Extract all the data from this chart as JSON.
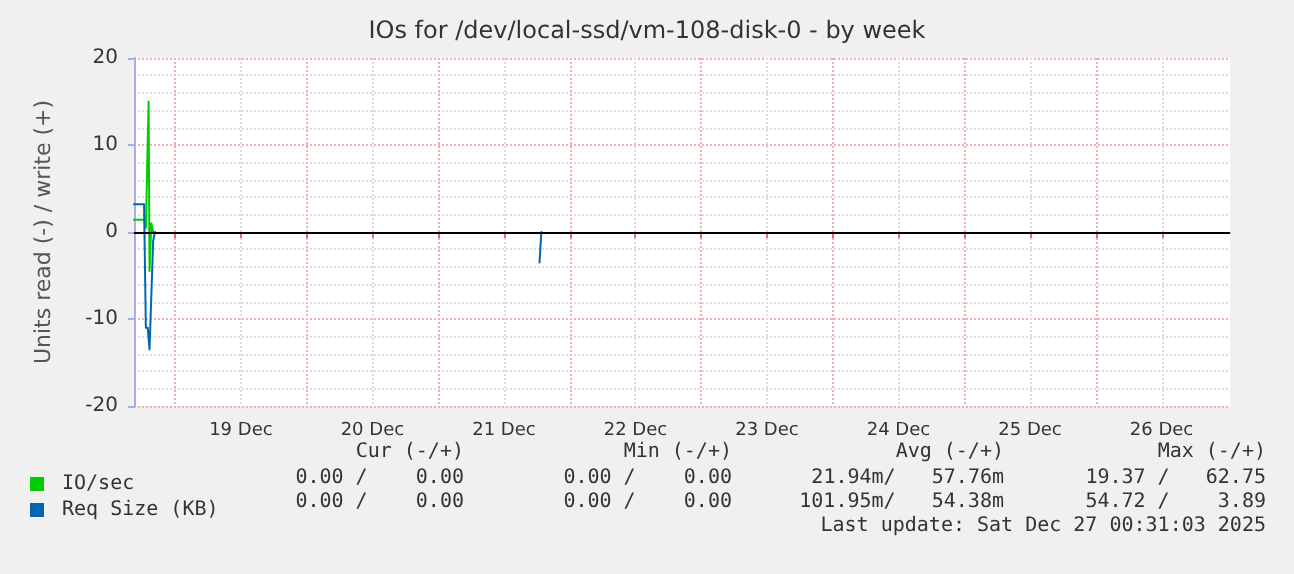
{
  "chart_data": {
    "type": "line",
    "title": "IOs for /dev/local-ssd/vm-108-disk-0 - by week",
    "ylabel": "Units read (-) / write (+)",
    "xlim": [
      "2025-12-18T16:30",
      "2025-12-27T00:30"
    ],
    "xticks": [
      {
        "value": "2025-12-19T00:00",
        "label": null
      },
      {
        "value": "2025-12-19T12:00",
        "label": "19 Dec"
      },
      {
        "value": "2025-12-20T00:00",
        "label": null
      },
      {
        "value": "2025-12-20T12:00",
        "label": "20 Dec"
      },
      {
        "value": "2025-12-21T00:00",
        "label": null
      },
      {
        "value": "2025-12-21T12:00",
        "label": "21 Dec"
      },
      {
        "value": "2025-12-22T00:00",
        "label": null
      },
      {
        "value": "2025-12-22T12:00",
        "label": "22 Dec"
      },
      {
        "value": "2025-12-23T00:00",
        "label": null
      },
      {
        "value": "2025-12-23T12:00",
        "label": "23 Dec"
      },
      {
        "value": "2025-12-24T00:00",
        "label": null
      },
      {
        "value": "2025-12-24T12:00",
        "label": "24 Dec"
      },
      {
        "value": "2025-12-25T00:00",
        "label": null
      },
      {
        "value": "2025-12-25T12:00",
        "label": "25 Dec"
      },
      {
        "value": "2025-12-26T00:00",
        "label": null
      },
      {
        "value": "2025-12-26T12:00",
        "label": "26 Dec"
      }
    ],
    "ylim": [
      -20,
      20
    ],
    "yticks": [
      -20,
      -10,
      0,
      10,
      20
    ],
    "grid": true,
    "legend": "bottom left",
    "marker": "none",
    "ref_lines": [
      {
        "axis": "y",
        "value": 0,
        "label": null,
        "color": "#000000"
      }
    ],
    "series": [
      {
        "name": "IO/sec",
        "color": "#00cc00",
        "x": [
          "2025-12-18T16:30",
          "2025-12-18T18:20",
          "2025-12-18T18:40",
          "2025-12-18T19:10",
          "2025-12-18T19:20",
          "2025-12-18T19:40",
          "2025-12-18T20:00"
        ],
        "values": [
          1.4,
          1.4,
          0.5,
          15,
          -4.5,
          1,
          0
        ]
      },
      {
        "name": "Req Size (KB)",
        "color": "#0066b3",
        "x": [
          "2025-12-18T16:30",
          "2025-12-18T18:20",
          "2025-12-18T18:40",
          "2025-12-18T19:00",
          "2025-12-18T19:20",
          "2025-12-18T20:00",
          "2025-12-18T20:20",
          "2025-12-21T18:10",
          "2025-12-21T18:30",
          "2025-12-21T18:50"
        ],
        "values": [
          3.2,
          3.2,
          -11,
          -11,
          -13.5,
          -1,
          0,
          null,
          -3.5,
          0
        ]
      }
    ],
    "annotations": [
      "Cur (-/+)",
      "Min (-/+)",
      "Avg (-/+)",
      "Max (-/+)",
      "0.00 /    0.00",
      "0.00 /    0.00",
      "21.94m/   57.76m",
      "19.37 /   62.75",
      "0.00 /    0.00",
      "0.00 /    0.00",
      "101.95m/   54.38m",
      "54.72 /    3.89",
      "Last update: Sat Dec 27 00:31:03 2025"
    ]
  }
}
